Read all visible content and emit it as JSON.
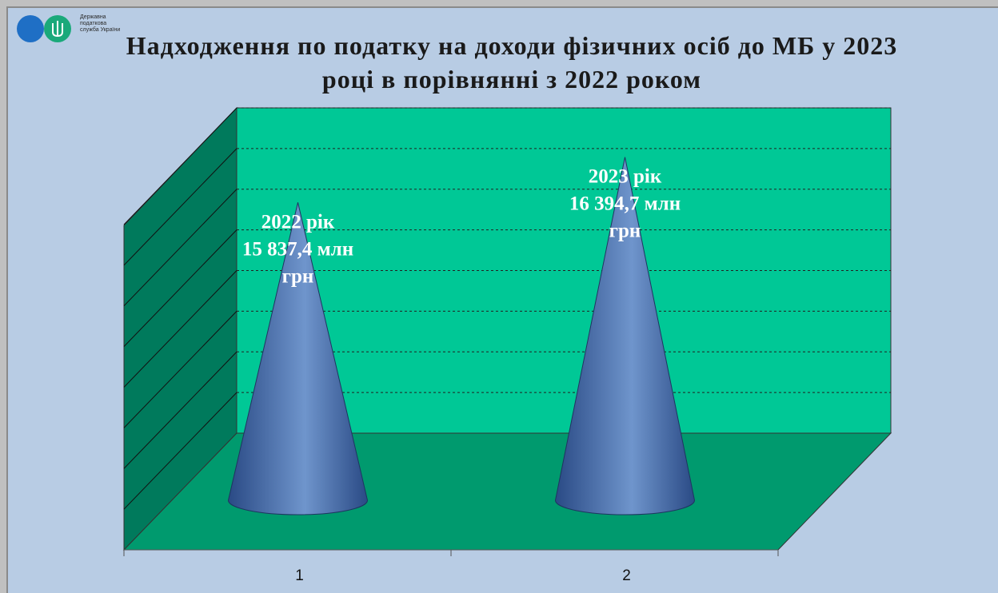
{
  "logo": {
    "lines": [
      "Державна",
      "податкова",
      "служба України"
    ],
    "colors": {
      "circle_blue": "#1f6fc5",
      "circle_green": "#1aa97a"
    }
  },
  "colors": {
    "background": "#b8cce4",
    "back_wall": "#00c896",
    "side_wall": "#007a5c",
    "floor": "#009a6e",
    "cone_dark": "#2a4a85",
    "cone_light": "#6f95cc"
  },
  "chart_data": {
    "type": "bar",
    "shape": "cone-3d",
    "title": "Надходження по податку на доходи фізичних осіб до МБ у 2023 році в порівнянні з 2022 роком",
    "categories": [
      "1",
      "2"
    ],
    "values": [
      15837.4,
      16394.7
    ],
    "data_labels": [
      [
        "2022 рік",
        "15 837,4 млн",
        "грн"
      ],
      [
        "2023 рік",
        "16 394,7 млн",
        "грн"
      ]
    ],
    "ylim": [
      13000,
      17000
    ],
    "y_gridlines": [
      13500,
      14000,
      14500,
      15000,
      15500,
      16000,
      16500,
      17000
    ],
    "grid": true,
    "legend": "none"
  }
}
